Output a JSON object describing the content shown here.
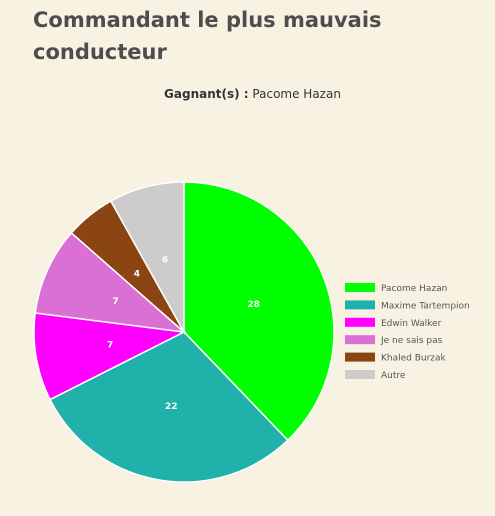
{
  "title": "Commandant le plus mauvais conducteur",
  "winners": {
    "label": "Gagnant(s) :",
    "value": "Pacome Hazan"
  },
  "chart_data": {
    "type": "pie",
    "title": "",
    "legend_position": "right",
    "slices": [
      {
        "label": "Pacome Hazan",
        "value": 28,
        "color": "#00ff00"
      },
      {
        "label": "Maxime Tartempion",
        "value": 22,
        "color": "#20b2aa"
      },
      {
        "label": "Edwin Walker",
        "value": 7,
        "color": "#ff00ff"
      },
      {
        "label": "Je ne sais pas",
        "value": 7,
        "color": "#da70d6"
      },
      {
        "label": "Khaled Burzak",
        "value": 4,
        "color": "#8b4513"
      },
      {
        "label": "Autre",
        "value": 6,
        "color": "#cccccc"
      }
    ]
  }
}
